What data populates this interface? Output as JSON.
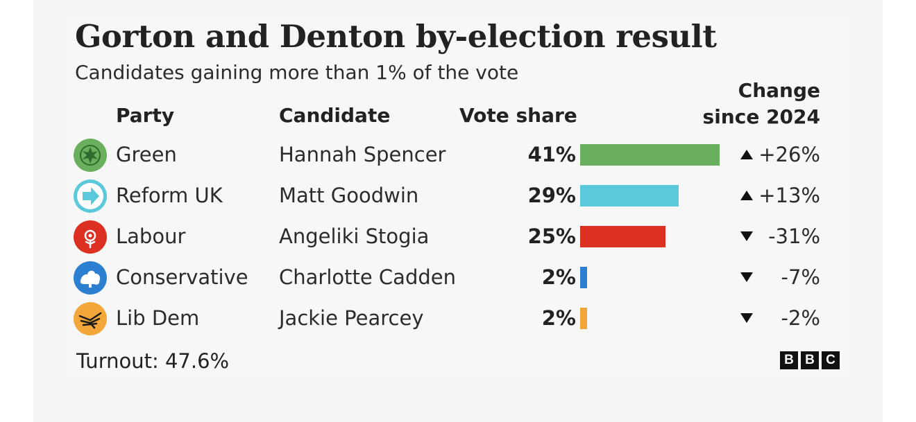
{
  "chart_data": {
    "type": "bar",
    "title": "Gorton and Denton by-election result",
    "subtitle": "Candidates gaining more than 1% of the vote",
    "columns": {
      "party": "Party",
      "candidate": "Candidate",
      "vote_share": "Vote share",
      "change_line1": "Change",
      "change_line2": "since 2024"
    },
    "xlim": [
      0,
      41
    ],
    "rows": [
      {
        "party": "Green",
        "candidate": "Hannah Spencer",
        "value": 41,
        "value_label": "41%",
        "change": 26,
        "change_label": "+26%",
        "direction": "up",
        "color": "#6aaf5e",
        "logo_icon": "green-party-icon"
      },
      {
        "party": "Reform UK",
        "candidate": "Matt Goodwin",
        "value": 29,
        "value_label": "29%",
        "change": 13,
        "change_label": "+13%",
        "direction": "up",
        "color": "#5bc8dc",
        "logo_icon": "reform-arrow-icon"
      },
      {
        "party": "Labour",
        "candidate": "Angeliki Stogia",
        "value": 25,
        "value_label": "25%",
        "change": -31,
        "change_label": "-31%",
        "direction": "down",
        "color": "#dc3122",
        "logo_icon": "labour-rose-icon"
      },
      {
        "party": "Conservative",
        "candidate": "Charlotte Cadden",
        "value": 2,
        "value_label": "2%",
        "change": -7,
        "change_label": "-7%",
        "direction": "down",
        "color": "#2d7fd2",
        "logo_icon": "conservative-tree-icon"
      },
      {
        "party": "Lib Dem",
        "candidate": "Jackie Pearcey",
        "value": 2,
        "value_label": "2%",
        "change": -2,
        "change_label": "-2%",
        "direction": "down",
        "color": "#f3a73a",
        "logo_icon": "libdem-bird-icon"
      }
    ]
  },
  "footer": {
    "turnout": "Turnout: 47.6%",
    "brand_letters": [
      "B",
      "B",
      "C"
    ]
  }
}
